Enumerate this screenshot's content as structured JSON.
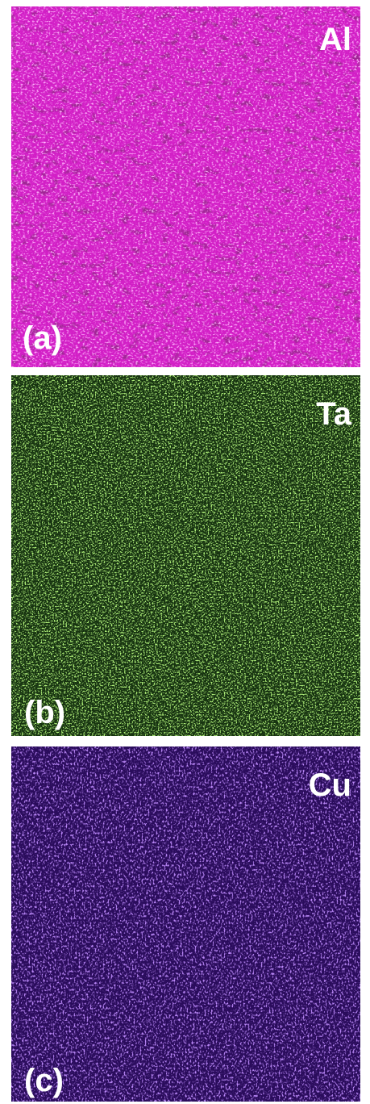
{
  "panels": [
    {
      "element": "Al",
      "label": "(a)"
    },
    {
      "element": "Ta",
      "label": "(b)"
    },
    {
      "element": "Cu",
      "label": "(c)"
    }
  ]
}
